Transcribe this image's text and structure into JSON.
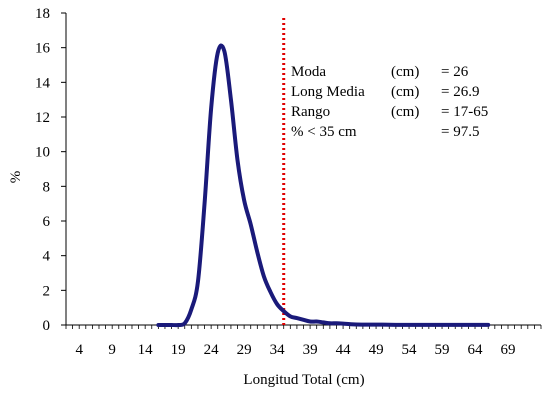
{
  "chart_data": {
    "type": "line",
    "xlabel": "Longitud Total (cm)",
    "ylabel": "%",
    "xlim": [
      2,
      74
    ],
    "ylim": [
      0,
      18
    ],
    "x_ticks": [
      4,
      9,
      14,
      19,
      24,
      29,
      34,
      39,
      44,
      49,
      54,
      59,
      64,
      69
    ],
    "y_ticks": [
      0,
      2,
      4,
      6,
      8,
      10,
      12,
      14,
      16,
      18
    ],
    "grid": false,
    "legend": "none",
    "series": [
      {
        "color": "#1a1a7a",
        "x": [
          16,
          17,
          18,
          19,
          20,
          21,
          22,
          23,
          24,
          25,
          26,
          27,
          28,
          29,
          30,
          31,
          32,
          33,
          34,
          35,
          36,
          37,
          38,
          39,
          40,
          41,
          42,
          43,
          44,
          45,
          46,
          48,
          50,
          52,
          54,
          56,
          58,
          60,
          62,
          64,
          66
        ],
        "y": [
          0,
          0,
          0,
          0,
          0.1,
          0.9,
          2.5,
          7.0,
          12.5,
          15.7,
          15.8,
          13.0,
          9.5,
          7.2,
          5.8,
          4.2,
          2.8,
          1.9,
          1.2,
          0.8,
          0.5,
          0.4,
          0.3,
          0.2,
          0.2,
          0.15,
          0.1,
          0.1,
          0.08,
          0.05,
          0.03,
          0.02,
          0.02,
          0.01,
          0.01,
          0.01,
          0.01,
          0.01,
          0.01,
          0.01,
          0.01
        ]
      }
    ],
    "reference_line": {
      "x": 35,
      "color": "#e00000",
      "style": "dotted"
    },
    "annotations": [
      {
        "label": "Moda",
        "unit": "(cm)",
        "value": "= 26"
      },
      {
        "label": "Long Media",
        "unit": "(cm)",
        "value": "= 26.9"
      },
      {
        "label": "Rango",
        "unit": "(cm)",
        "value": "=  17-65"
      },
      {
        "label": "% < 35 cm",
        "unit": "",
        "value": "=  97.5"
      }
    ]
  }
}
